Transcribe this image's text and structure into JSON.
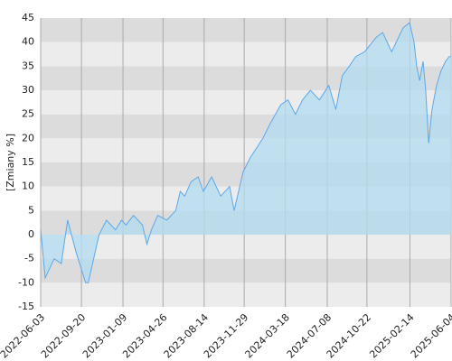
{
  "chart_data": {
    "type": "area",
    "y_label": "[Zmiany %]",
    "x": [
      "2022-06-03",
      "2022-06-15",
      "2022-07-09",
      "2022-07-28",
      "2022-08-14",
      "2022-09-07",
      "2022-10-01",
      "2022-10-08",
      "2022-11-06",
      "2022-11-26",
      "2022-12-20",
      "2023-01-05",
      "2023-01-17",
      "2023-02-06",
      "2023-03-02",
      "2023-03-14",
      "2023-03-26",
      "2023-04-12",
      "2023-05-06",
      "2023-05-30",
      "2023-06-11",
      "2023-06-23",
      "2023-07-10",
      "2023-07-29",
      "2023-08-12",
      "2023-09-03",
      "2023-09-27",
      "2023-10-21",
      "2023-11-02",
      "2023-11-26",
      "2023-12-15",
      "2024-01-18",
      "2024-02-06",
      "2024-03-06",
      "2024-03-25",
      "2024-04-14",
      "2024-05-03",
      "2024-05-24",
      "2024-06-17",
      "2024-07-12",
      "2024-07-31",
      "2024-08-17",
      "2024-09-05",
      "2024-09-22",
      "2024-10-16",
      "2024-11-16",
      "2024-12-03",
      "2024-12-27",
      "2025-01-27",
      "2025-02-13",
      "2025-02-25",
      "2025-03-04",
      "2025-03-12",
      "2025-03-21",
      "2025-03-28",
      "2025-04-05",
      "2025-04-14",
      "2025-04-26",
      "2025-05-08",
      "2025-05-20",
      "2025-05-30",
      "2025-06-04"
    ],
    "values": [
      1,
      -9,
      -5,
      -6,
      3,
      -4,
      -10,
      -10,
      0,
      3,
      1,
      3,
      2,
      4,
      2,
      -2,
      1,
      4,
      3,
      5,
      9,
      8,
      11,
      12,
      9,
      12,
      8,
      10,
      5,
      13,
      16,
      20,
      23,
      27,
      28,
      25,
      28,
      30,
      28,
      31,
      26,
      33,
      35,
      37,
      38,
      41,
      42,
      38,
      43,
      44,
      40,
      35,
      32,
      36,
      30,
      19,
      26,
      31,
      34,
      36,
      37,
      37
    ],
    "color": "#5ba8ea",
    "fill": "#b3dcf0",
    "xlim": [
      "2022-06-03",
      "2025-06-04"
    ],
    "xticks": [
      "2022-06-03",
      "2022-09-20",
      "2023-01-09",
      "2023-04-26",
      "2023-08-14",
      "2023-11-29",
      "2024-03-18",
      "2024-07-08",
      "2024-10-22",
      "2025-02-14",
      "2025-06-04"
    ],
    "ylim": [
      -15,
      45
    ],
    "yticks": [
      -15,
      -10,
      -5,
      0,
      5,
      10,
      15,
      20,
      25,
      30,
      35,
      40,
      45
    ],
    "grid": true
  }
}
